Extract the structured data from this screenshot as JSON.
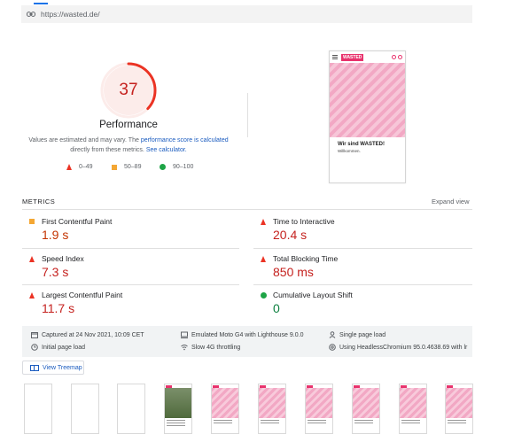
{
  "page": {
    "url": "https://wasted.de/"
  },
  "performance": {
    "score": "37",
    "score_fraction": 0.37,
    "title": "Performance",
    "note_prefix": "Values are estimated and may vary. The ",
    "note_link1": "performance score is calculated",
    "note_mid": " directly from these metrics. ",
    "note_link2": "See calculator.",
    "legend": [
      {
        "range": "0–49",
        "shape": "triangle",
        "color": "#eb3324"
      },
      {
        "range": "50–89",
        "shape": "square",
        "color": "#f4a734"
      },
      {
        "range": "90–100",
        "shape": "circle",
        "color": "#1ea446"
      }
    ]
  },
  "screenshot": {
    "logo": "WASTED",
    "heading": "Wir sind WASTED!",
    "subtext": "Willkommen."
  },
  "metrics": {
    "label": "METRICS",
    "expand_label": "Expand view",
    "items": [
      {
        "label": "First Contentful Paint",
        "value": "1.9 s",
        "status": "average"
      },
      {
        "label": "Time to Interactive",
        "value": "20.4 s",
        "status": "fail"
      },
      {
        "label": "Speed Index",
        "value": "7.3 s",
        "status": "fail"
      },
      {
        "label": "Total Blocking Time",
        "value": "850 ms",
        "status": "fail"
      },
      {
        "label": "Largest Contentful Paint",
        "value": "11.7 s",
        "status": "fail"
      },
      {
        "label": "Cumulative Layout Shift",
        "value": "0",
        "status": "pass"
      }
    ]
  },
  "info": {
    "captured": "Captured at 24 Nov 2021, 10:09 CET",
    "device": "Emulated Moto G4 with Lighthouse 9.0.0",
    "session": "Single page load",
    "load": "Initial page load",
    "throttling": "Slow 4G throttling",
    "browser": "Using HeadlessChromium 95.0.4638.69 with lr"
  },
  "treemap": {
    "label": "View Treemap"
  },
  "colors": {
    "fail": "#eb3324",
    "average": "#f4a734",
    "pass": "#1ea446",
    "link": "#1a5bbf"
  }
}
